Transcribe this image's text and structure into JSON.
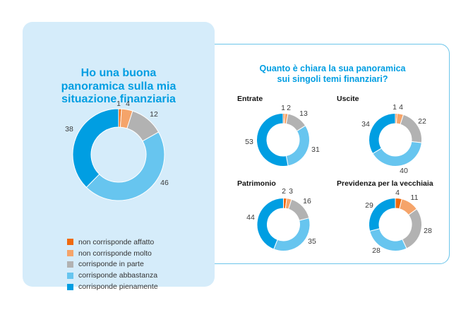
{
  "colors": {
    "title": "#009ee2",
    "panel_background": "#d5ecfa",
    "panel_border": "#6cc5ea",
    "categories": [
      "#f06a0f",
      "#f5a46a",
      "#b2b2b2",
      "#67c5ef",
      "#009ee2"
    ]
  },
  "main_panel": {
    "title_lines": [
      "Ho una buona",
      "panoramica sulla mia",
      "situazione finanziaria"
    ],
    "legend": [
      {
        "label": "non corrisponde affatto",
        "color": "#f06a0f"
      },
      {
        "label": "non corrisponde molto",
        "color": "#f5a46a"
      },
      {
        "label": "corrisponde in parte",
        "color": "#b2b2b2"
      },
      {
        "label": "corrisponde abbastanza",
        "color": "#67c5ef"
      },
      {
        "label": "corrisponde pienamente",
        "color": "#009ee2"
      }
    ]
  },
  "detail_panel": {
    "title_lines": [
      "Quanto è chiara la sua panoramica",
      "sui singoli temi finanziari?"
    ]
  },
  "chart_data": [
    {
      "type": "pie",
      "style": "donut",
      "title": "Ho una buona panoramica sulla mia situazione finanziaria",
      "categories": [
        "non corrisponde affatto",
        "non corrisponde molto",
        "corrisponde in parte",
        "corrisponde abbastanza",
        "corrisponde pienamente"
      ],
      "values": [
        1,
        4,
        12,
        46,
        38
      ],
      "unit": "%",
      "legend": "bottom"
    },
    {
      "type": "pie",
      "style": "donut",
      "title": "Entrate",
      "categories": [
        "non corrisponde affatto",
        "non corrisponde molto",
        "corrisponde in parte",
        "corrisponde abbastanza",
        "corrisponde pienamente"
      ],
      "values": [
        1,
        2,
        13,
        31,
        53
      ],
      "unit": "%"
    },
    {
      "type": "pie",
      "style": "donut",
      "title": "Uscite",
      "categories": [
        "non corrisponde affatto",
        "non corrisponde molto",
        "corrisponde in parte",
        "corrisponde abbastanza",
        "corrisponde pienamente"
      ],
      "values": [
        1,
        4,
        22,
        40,
        34
      ],
      "unit": "%"
    },
    {
      "type": "pie",
      "style": "donut",
      "title": "Patrimonio",
      "categories": [
        "non corrisponde affatto",
        "non corrisponde molto",
        "corrisponde in parte",
        "corrisponde abbastanza",
        "corrisponde pienamente"
      ],
      "values": [
        2,
        3,
        16,
        35,
        44
      ],
      "unit": "%"
    },
    {
      "type": "pie",
      "style": "donut",
      "title": "Previdenza per la vecchiaia",
      "categories": [
        "non corrisponde affatto",
        "non corrisponde molto",
        "corrisponde in parte",
        "corrisponde abbastanza",
        "corrisponde pienamente"
      ],
      "values": [
        4,
        11,
        28,
        28,
        29
      ],
      "unit": "%"
    }
  ]
}
